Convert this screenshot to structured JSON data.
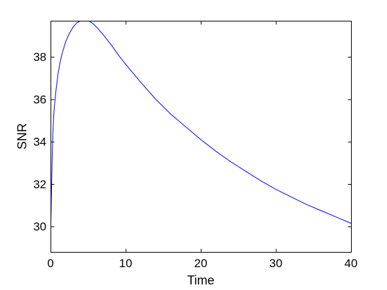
{
  "chart_data": {
    "type": "line",
    "title": "",
    "xlabel": "Time",
    "ylabel": "SNR",
    "xlim": [
      0,
      40
    ],
    "ylim": [
      28.8,
      39.7
    ],
    "xticks": [
      0,
      10,
      20,
      30,
      40
    ],
    "yticks": [
      30,
      32,
      34,
      36,
      38
    ],
    "grid": false,
    "series": [
      {
        "color": "#0000ff",
        "x": [
          0,
          0.05,
          0.1,
          0.15,
          0.2,
          0.3,
          0.4,
          0.5,
          0.75,
          1.0,
          1.25,
          1.5,
          2.0,
          2.5,
          3.0,
          3.5,
          4.0,
          4.5,
          5.0,
          5.5,
          6.0,
          7.0,
          8.0,
          9.0,
          10.0,
          12.0,
          14.0,
          16.0,
          18.0,
          20.0,
          22.0,
          24.0,
          26.0,
          28.0,
          30.0,
          32.0,
          34.0,
          36.0,
          38.0,
          40.0
        ],
        "y": [
          29.3,
          30.2,
          31.2,
          32.1,
          32.9,
          34.3,
          35.1,
          35.6,
          36.5,
          37.2,
          37.7,
          38.1,
          38.7,
          39.1,
          39.4,
          39.6,
          39.7,
          39.75,
          39.72,
          39.6,
          39.45,
          39.05,
          38.6,
          38.1,
          37.65,
          36.8,
          36.0,
          35.3,
          34.7,
          34.1,
          33.55,
          33.05,
          32.6,
          32.15,
          31.75,
          31.4,
          31.05,
          30.75,
          30.45,
          30.15
        ]
      }
    ]
  }
}
